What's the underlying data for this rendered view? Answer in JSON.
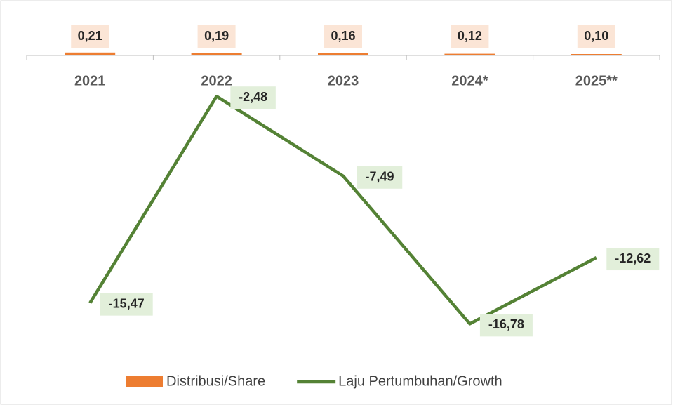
{
  "chart_data": {
    "type": "bar-line",
    "categories": [
      "2021",
      "2022",
      "2023",
      "2024*",
      "2025**"
    ],
    "series": [
      {
        "name": "Distribusi/Share",
        "type": "bar",
        "color": "#ed7d31",
        "values": [
          0.21,
          0.19,
          0.16,
          0.12,
          0.1
        ],
        "value_labels": [
          "0,21",
          "0,19",
          "0,16",
          "0,12",
          "0,10"
        ]
      },
      {
        "name": "Laju Pertumbuhan/Growth",
        "type": "line",
        "axis": "y2",
        "color": "#548235",
        "values": [
          -15.47,
          -2.48,
          -7.49,
          -16.78,
          -12.62
        ],
        "value_labels": [
          "-15,47",
          "-2,48",
          "-7,49",
          "-16,78",
          "-12,62"
        ]
      }
    ],
    "ylim": [
      0,
      3.5
    ],
    "y2lim": [
      -18,
      0
    ],
    "legend": "bottom"
  }
}
